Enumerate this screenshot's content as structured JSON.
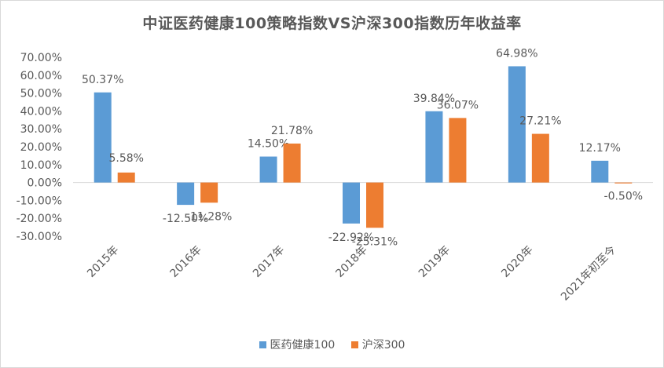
{
  "chart_data": {
    "type": "bar",
    "title": "中证医药健康100策略指数VS沪深300指数历年收益率",
    "categories": [
      "2015年",
      "2016年",
      "2017年",
      "2018年",
      "2019年",
      "2020年",
      "2021年初至今"
    ],
    "series": [
      {
        "name": "医药健康100",
        "values": [
          50.37,
          -12.5,
          14.5,
          -22.92,
          39.84,
          64.98,
          12.17
        ],
        "labels": [
          "50.37%",
          "-12.50%",
          "14.50%",
          "-22.92%",
          "39.84%",
          "64.98%",
          "12.17%"
        ],
        "color": "#5b9bd5"
      },
      {
        "name": "沪深300",
        "values": [
          5.58,
          -11.28,
          21.78,
          -25.31,
          36.07,
          27.21,
          -0.5
        ],
        "labels": [
          "5.58%",
          "-11.28%",
          "21.78%",
          "-25.31%",
          "36.07%",
          "27.21%",
          "-0.50%"
        ],
        "color": "#ed7d31"
      }
    ],
    "ylim": [
      -30,
      70
    ],
    "yticks": [
      "70.00%",
      "60.00%",
      "50.00%",
      "40.00%",
      "30.00%",
      "20.00%",
      "10.00%",
      "0.00%",
      "-10.00%",
      "-20.00%",
      "-30.00%"
    ],
    "ytick_values": [
      70,
      60,
      50,
      40,
      30,
      20,
      10,
      0,
      -10,
      -20,
      -30
    ],
    "grid": false,
    "legend_position": "bottom"
  }
}
